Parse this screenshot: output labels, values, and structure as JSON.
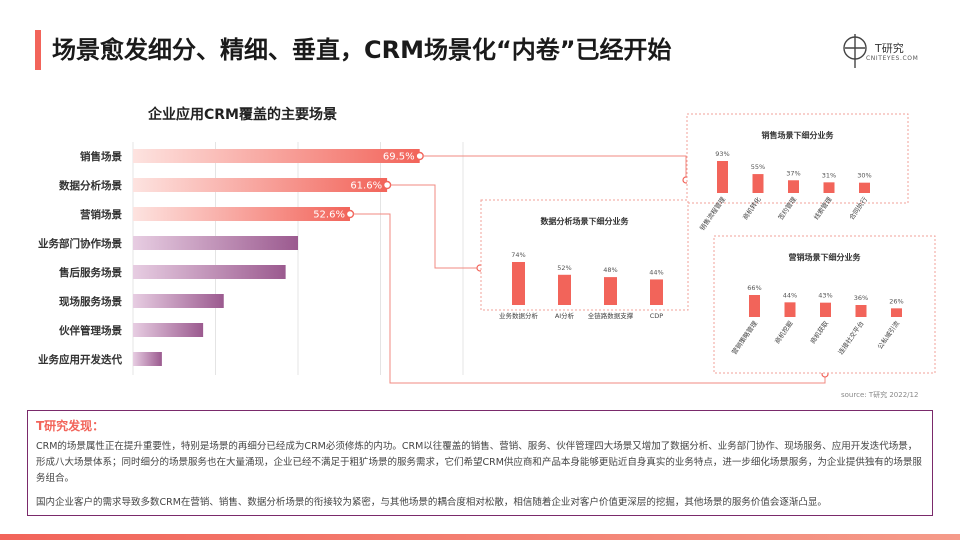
{
  "header": {
    "title": "场景愈发细分、精细、垂直，CRM场景化“内卷”已经开始",
    "logo_name": "T研究",
    "logo_sub": "CNITEYES.COM"
  },
  "colors": {
    "accent": "#f2645a",
    "purple": "#9b5a8f",
    "border_pink": "#f2a09a",
    "deep_purple": "#7a2a6b"
  },
  "chart_data": [
    {
      "type": "bar",
      "orientation": "horizontal",
      "title": "企业应用CRM覆盖的主要场景",
      "categories": [
        "销售场景",
        "数据分析场景",
        "营销场景",
        "业务部门协作场景",
        "售后服务场景",
        "现场服务场景",
        "伙伴管理场景",
        "业务应用开发迭代"
      ],
      "values": [
        69.5,
        61.6,
        52.6,
        40,
        37,
        22,
        17,
        7
      ],
      "data_labels": [
        "69.5%",
        "61.6%",
        "52.6%",
        "",
        "",
        "",
        "",
        ""
      ],
      "xlim": [
        0,
        80
      ],
      "grid": true
    },
    {
      "type": "bar",
      "title": "销售场景下细分业务",
      "categories": [
        "销售流程管理",
        "商机转化",
        "签约管理",
        "线索管理",
        "合同执行"
      ],
      "values": [
        93,
        55,
        37,
        31,
        30
      ],
      "data_labels": [
        "93%",
        "55%",
        "37%",
        "31%",
        "30%"
      ]
    },
    {
      "type": "bar",
      "title": "数据分析场景下细分业务",
      "categories": [
        "业务数据分析",
        "AI分析",
        "全链路数据支撑",
        "CDP"
      ],
      "values": [
        74,
        52,
        48,
        44
      ],
      "data_labels": [
        "74%",
        "52%",
        "48%",
        "44%"
      ]
    },
    {
      "type": "bar",
      "title": "营销场景下细分业务",
      "categories": [
        "营销策略管理",
        "商机挖掘",
        "商机获取",
        "连接社交平台",
        "公私域引流"
      ],
      "values": [
        66,
        44,
        43,
        36,
        26
      ],
      "data_labels": [
        "66%",
        "44%",
        "43%",
        "36%",
        "26%"
      ]
    }
  ],
  "source": "source:      T研究  2022/12",
  "findings": {
    "title": "T研究发现：",
    "p1": "CRM的场景属性正在提升重要性，特别是场景的再细分已经成为CRM必须修炼的内功。CRM以往覆盖的销售、营销、服务、伙伴管理四大场景又增加了数据分析、业务部门协作、现场服务、应用开发迭代场景，形成八大场景体系；同时细分的场景服务也在大量涌现，企业已经不满足于粗犷场景的服务需求，它们希望CRM供应商和产品本身能够更贴近自身真实的业务特点，进一步细化场景服务，为企业提供独有的场景服务组合。",
    "p2": "国内企业客户的需求导致多数CRM在营销、销售、数据分析场景的衔接较为紧密，与其他场景的耦合度相对松散，相信随着企业对客户价值更深层的挖掘，其他场景的服务价值会逐渐凸显。"
  }
}
